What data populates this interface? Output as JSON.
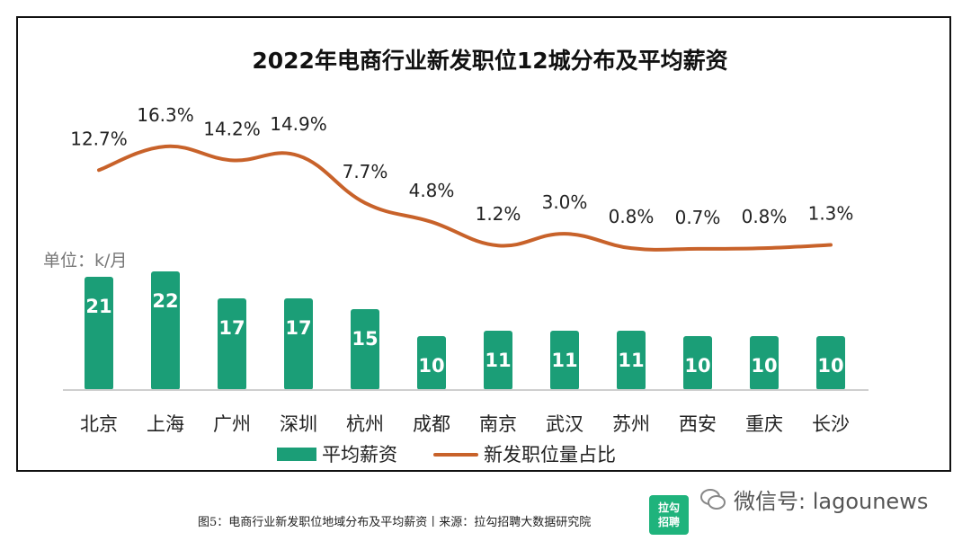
{
  "chart_data": {
    "type": "bar",
    "title": "2022年电商行业新发职位12城分布及平均薪资",
    "unit_label": "单位：k/月",
    "categories": [
      "北京",
      "上海",
      "广州",
      "深圳",
      "杭州",
      "成都",
      "南京",
      "武汉",
      "苏州",
      "西安",
      "重庆",
      "长沙"
    ],
    "series": [
      {
        "name": "平均薪资",
        "type": "bar",
        "color": "#1b9e77",
        "values": [
          21,
          22,
          17,
          17,
          15,
          10,
          11,
          11,
          11,
          10,
          10,
          10
        ]
      },
      {
        "name": "新发职位量占比",
        "type": "line",
        "color": "#c8622a",
        "values": [
          12.7,
          16.3,
          14.2,
          14.9,
          7.7,
          4.8,
          1.2,
          3.0,
          0.8,
          0.7,
          0.8,
          1.3
        ],
        "labels": [
          "12.7%",
          "16.3%",
          "14.2%",
          "14.9%",
          "7.7%",
          "4.8%",
          "1.2%",
          "3.0%",
          "0.8%",
          "0.7%",
          "0.8%",
          "1.3%"
        ]
      }
    ],
    "legend_position": "bottom",
    "grid": false
  },
  "caption": "图5：电商行业新发职位地域分布及平均薪资丨来源：拉勾招聘大数据研究院",
  "logo_text_1": "拉勾",
  "logo_text_2": "招聘",
  "watermark": "微信号: lagounews"
}
